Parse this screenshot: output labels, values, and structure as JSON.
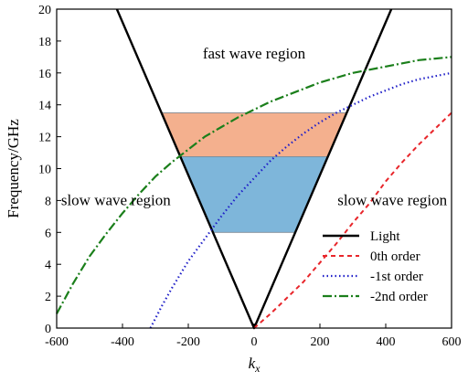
{
  "chart_data": {
    "type": "line",
    "title": "",
    "xlabel": "k",
    "xlabel_sub": "x",
    "ylabel": "Frequency/GHz",
    "xlim": [
      -600,
      600
    ],
    "ylim": [
      0,
      20
    ],
    "xticks": [
      -600,
      -400,
      -200,
      0,
      200,
      400,
      600
    ],
    "yticks": [
      0,
      2,
      4,
      6,
      8,
      10,
      12,
      14,
      16,
      18,
      20
    ],
    "grid": false,
    "legend_position": "lower-right",
    "regions": [
      {
        "name": "orange band",
        "ymin": 10.75,
        "ymax": 13.5,
        "color": "#F4B08E"
      },
      {
        "name": "blue band",
        "ymin": 6.0,
        "ymax": 10.75,
        "color": "#7EB6DA"
      }
    ],
    "annotations": [
      {
        "text": "fast wave region",
        "x": 0,
        "y": 16.9
      },
      {
        "text": "slow wave region",
        "x": -420,
        "y": 7.7
      },
      {
        "text": "slow wave region",
        "x": 420,
        "y": 7.7
      }
    ],
    "series": [
      {
        "name": "Light",
        "color": "#000000",
        "dash": "solid",
        "width": 2.4,
        "x": [
          -417,
          0,
          417
        ],
        "y": [
          20,
          0,
          20
        ]
      },
      {
        "name": "0th order",
        "color": "#E8262B",
        "dash": "5,4",
        "width": 2.0,
        "x": [
          0,
          50,
          100,
          150,
          200,
          250,
          300,
          350,
          400,
          450,
          500,
          550,
          600
        ],
        "y": [
          0,
          0.9,
          1.9,
          2.9,
          4.1,
          5.3,
          6.6,
          7.8,
          9.2,
          10.4,
          11.5,
          12.5,
          13.5
        ]
      },
      {
        "name": "-1st order",
        "color": "#1F1FC8",
        "dash": "1.5,3",
        "width": 2.2,
        "x": [
          -315,
          -280,
          -250,
          -200,
          -150,
          -100,
          -50,
          0,
          50,
          100,
          150,
          200,
          250,
          300,
          350,
          400,
          450,
          500,
          550,
          600
        ],
        "y": [
          0,
          1.4,
          2.5,
          4.2,
          5.6,
          7.0,
          8.3,
          9.4,
          10.5,
          11.4,
          12.2,
          12.9,
          13.5,
          14.0,
          14.5,
          14.9,
          15.3,
          15.6,
          15.8,
          16.0
        ]
      },
      {
        "name": "-2nd order",
        "color": "#1B7F1B",
        "dash": "10,3,2,3",
        "width": 2.2,
        "x": [
          -600,
          -550,
          -500,
          -450,
          -400,
          -350,
          -300,
          -250,
          -200,
          -150,
          -100,
          -50,
          0,
          50,
          100,
          150,
          200,
          250,
          300,
          350,
          400,
          450,
          500,
          550,
          600
        ],
        "y": [
          0.9,
          2.8,
          4.5,
          5.9,
          7.2,
          8.4,
          9.5,
          10.4,
          11.2,
          12.0,
          12.6,
          13.2,
          13.7,
          14.2,
          14.6,
          15.0,
          15.4,
          15.7,
          16.0,
          16.2,
          16.4,
          16.6,
          16.8,
          16.9,
          17.0
        ]
      }
    ]
  }
}
